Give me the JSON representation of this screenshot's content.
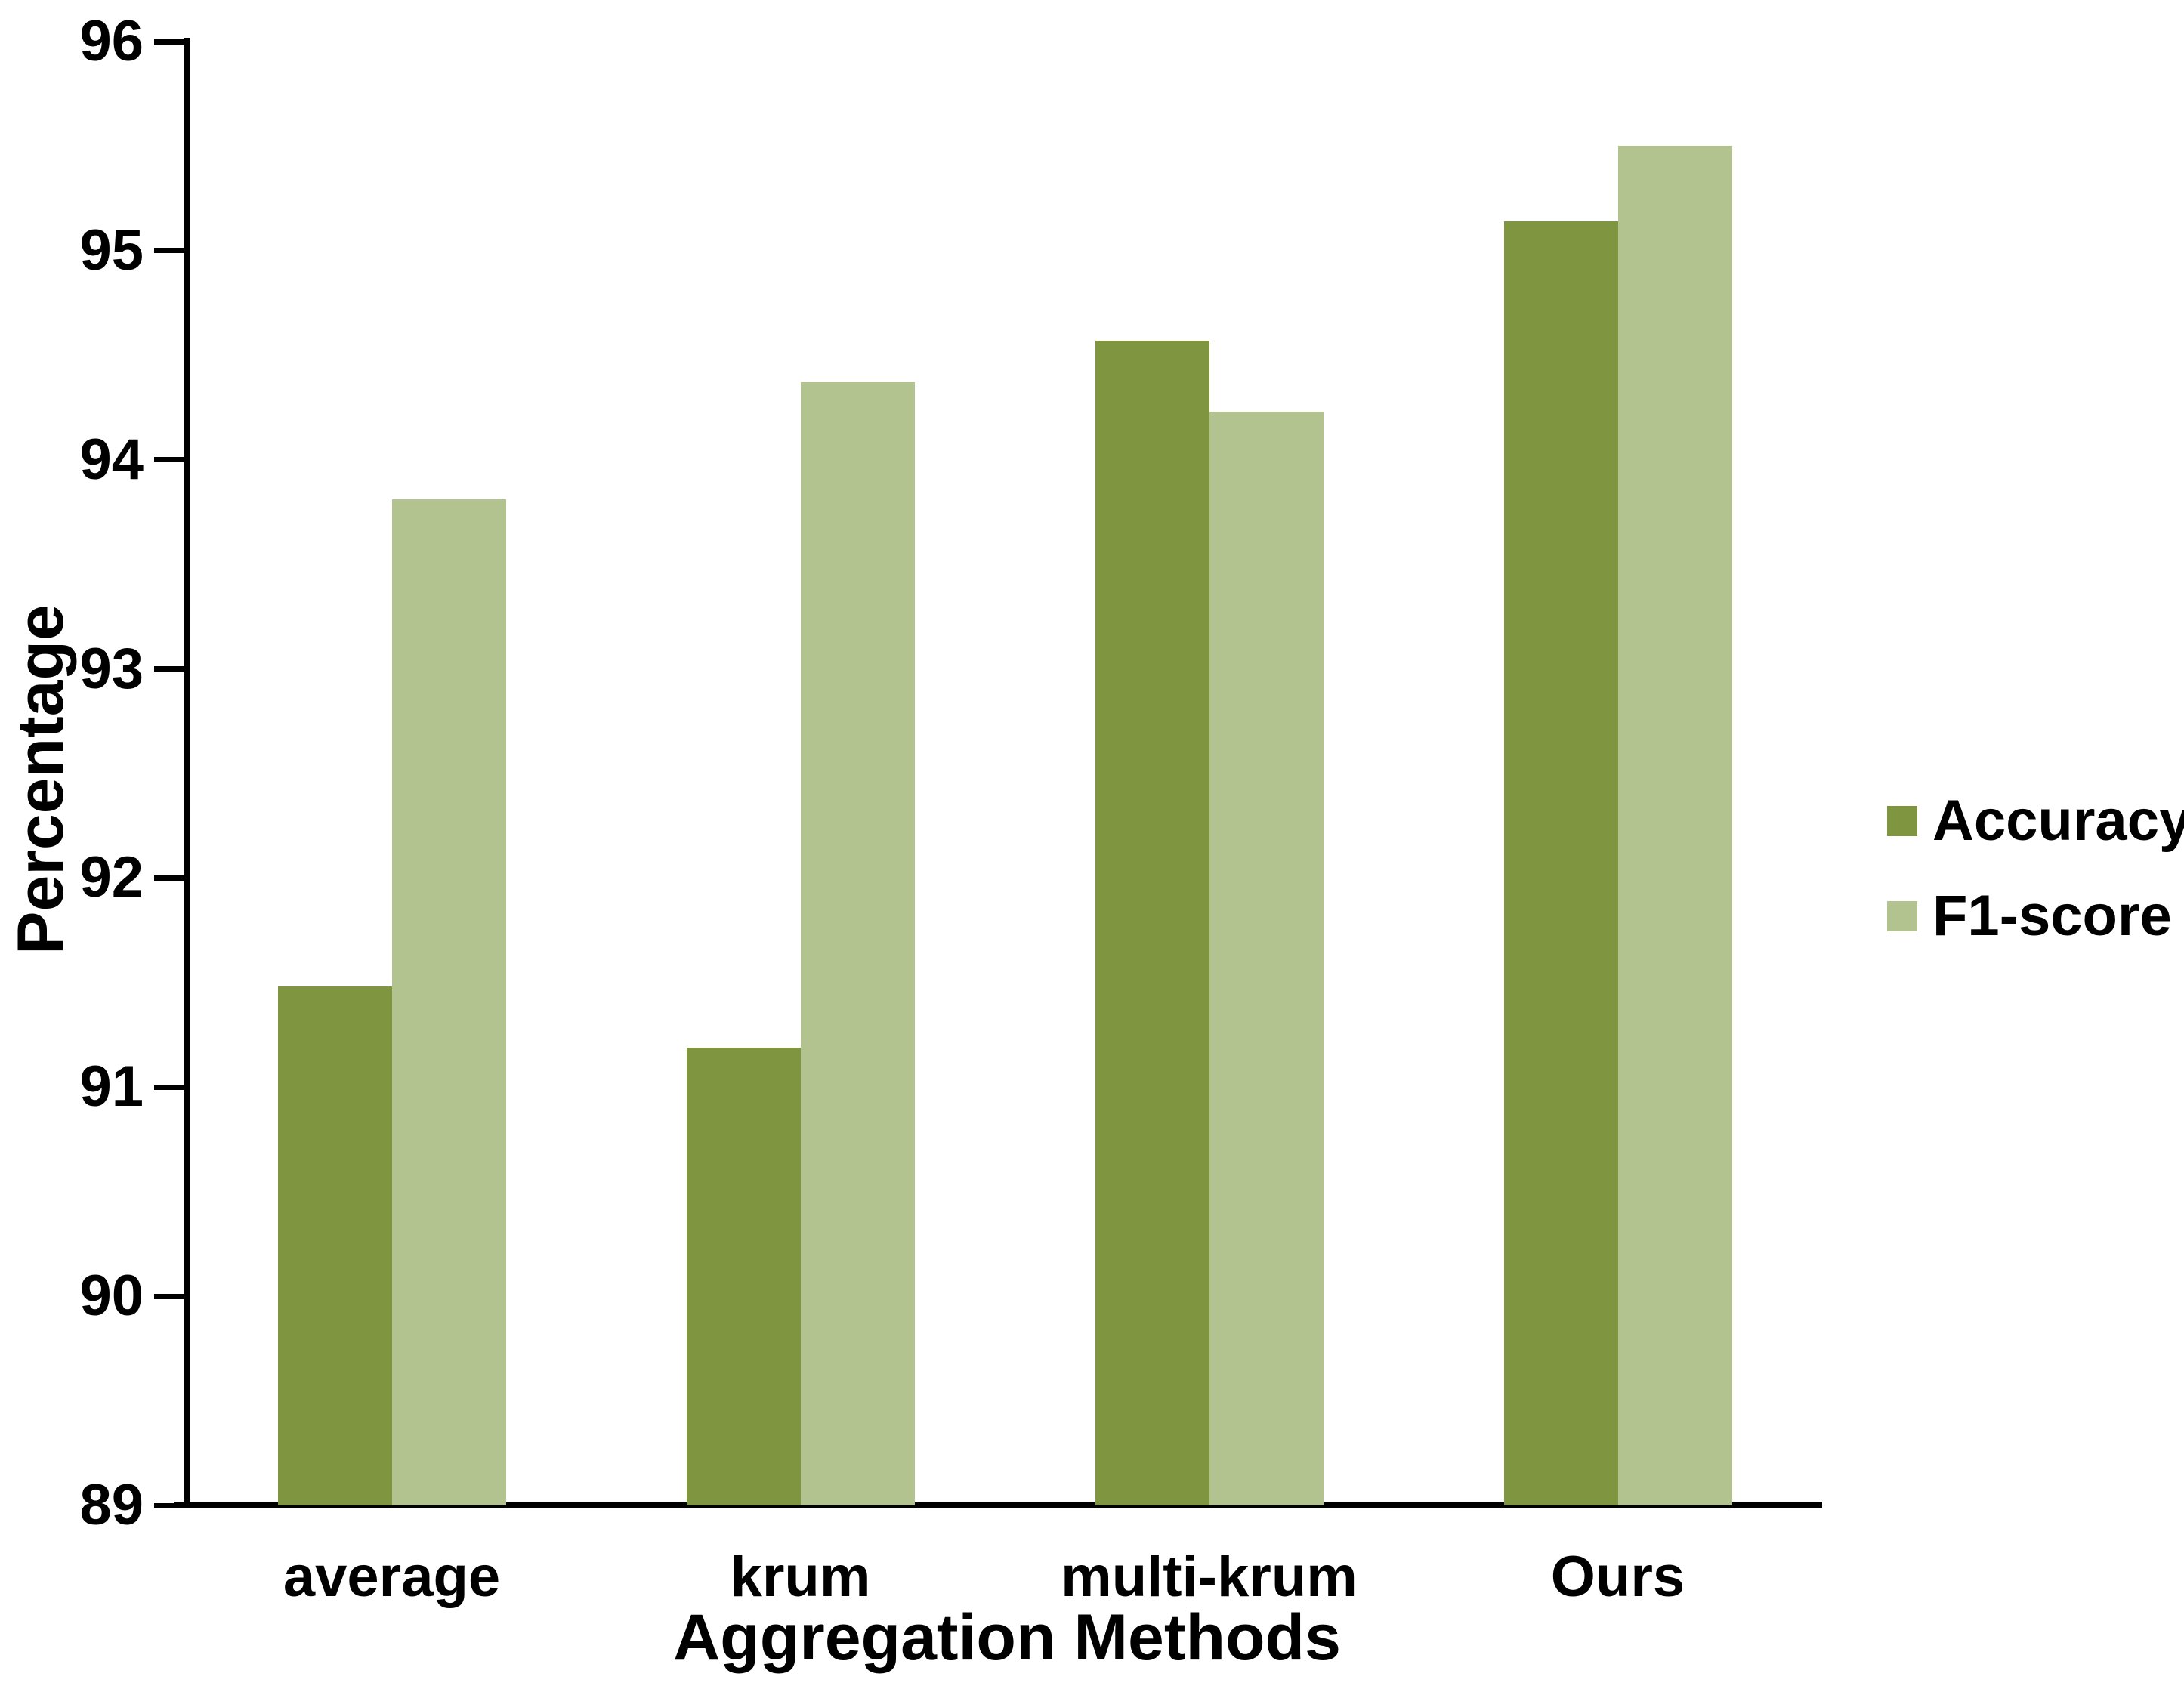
{
  "chart_data": {
    "type": "bar",
    "title": "",
    "xlabel": "Aggregation Methods",
    "ylabel": "Percentage",
    "categories": [
      "average",
      "krum",
      "multi-krum",
      "Ours"
    ],
    "series": [
      {
        "name": "Accuracy",
        "color": "#80953F",
        "values": [
          91.48,
          91.19,
          94.57,
          95.14
        ]
      },
      {
        "name": "F1-score",
        "color": "#B3C390",
        "values": [
          93.81,
          94.37,
          94.23,
          95.5
        ]
      }
    ],
    "ylim": [
      89,
      96
    ],
    "yticks": [
      96,
      95,
      94,
      93,
      92,
      91,
      90,
      89
    ],
    "grid": false,
    "legend_position": "right-middle",
    "bar_orientation": "vertical"
  },
  "colors": {
    "axis": "#000000",
    "text": "#000000",
    "background": "#ffffff",
    "accuracy_bar": "#80953F",
    "f1_bar": "#B3C390"
  }
}
